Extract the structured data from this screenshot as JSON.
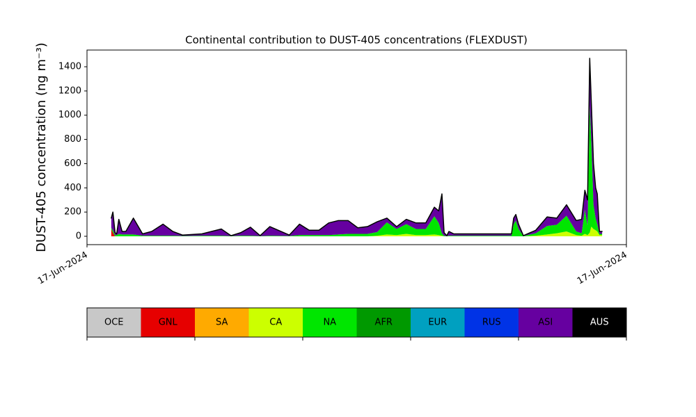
{
  "chart_data": {
    "type": "stacked_area",
    "title": "Continental contribution to DUST-405 concentrations (FLEXDUST)",
    "ylabel": "DUST-405 concentration (ng m⁻³)",
    "xlim": [
      0,
      1
    ],
    "xticks": [
      {
        "value": 0,
        "label": "17-Jun-2024"
      },
      {
        "value": 1,
        "label": "17-Jun-2024"
      }
    ],
    "ylim": [
      -69,
      1538
    ],
    "yticks": [
      0,
      200,
      400,
      600,
      800,
      1000,
      1200,
      1400
    ],
    "x": [
      0.045,
      0.048,
      0.052,
      0.055,
      0.059,
      0.065,
      0.072,
      0.086,
      0.103,
      0.12,
      0.141,
      0.159,
      0.177,
      0.213,
      0.249,
      0.267,
      0.285,
      0.303,
      0.321,
      0.339,
      0.375,
      0.394,
      0.412,
      0.43,
      0.448,
      0.466,
      0.484,
      0.502,
      0.52,
      0.538,
      0.556,
      0.574,
      0.592,
      0.61,
      0.628,
      0.644,
      0.652,
      0.658,
      0.662,
      0.667,
      0.671,
      0.68,
      0.787,
      0.791,
      0.795,
      0.8,
      0.809,
      0.832,
      0.853,
      0.871,
      0.889,
      0.907,
      0.917,
      0.923,
      0.928,
      0.932,
      0.935,
      0.939,
      0.943,
      0.946,
      0.95,
      0.955
    ],
    "series": [
      {
        "name": "OCE",
        "color": "#c8c8c8",
        "values": [
          0,
          0,
          0,
          0,
          0,
          0,
          0,
          0,
          0,
          0,
          0,
          0,
          0,
          0,
          0,
          0,
          0,
          0,
          0,
          0,
          0,
          0,
          0,
          0,
          0,
          0,
          0,
          0,
          0,
          0,
          0,
          0,
          0,
          0,
          0,
          0,
          0,
          0,
          0,
          0,
          0,
          0,
          0,
          0,
          0,
          0,
          0,
          0,
          0,
          0,
          0,
          0,
          0,
          0,
          0,
          0,
          0,
          0,
          0,
          0,
          0,
          0
        ]
      },
      {
        "name": "GNL",
        "color": "#e60000",
        "values": [
          60,
          30,
          0,
          0,
          0,
          0,
          0,
          0,
          0,
          0,
          0,
          0,
          0,
          0,
          0,
          0,
          0,
          0,
          0,
          0,
          0,
          0,
          0,
          0,
          0,
          0,
          0,
          0,
          0,
          0,
          0,
          0,
          0,
          0,
          0,
          0,
          0,
          0,
          0,
          0,
          0,
          0,
          0,
          0,
          0,
          0,
          0,
          0,
          0,
          0,
          0,
          0,
          0,
          0,
          0,
          0,
          0,
          0,
          0,
          0,
          0,
          0
        ]
      },
      {
        "name": "SA",
        "color": "#ffaa00",
        "values": [
          0,
          0,
          0,
          0,
          0,
          0,
          0,
          0,
          0,
          0,
          0,
          0,
          0,
          0,
          0,
          0,
          0,
          0,
          0,
          0,
          0,
          0,
          0,
          0,
          0,
          0,
          0,
          0,
          0,
          0,
          0,
          0,
          0,
          0,
          0,
          0,
          0,
          0,
          0,
          0,
          0,
          0,
          0,
          0,
          0,
          0,
          0,
          0,
          0,
          0,
          0,
          0,
          0,
          0,
          0,
          0,
          0,
          0,
          0,
          0,
          0,
          0
        ]
      },
      {
        "name": "CA",
        "color": "#ccff00",
        "values": [
          0,
          0,
          0,
          0,
          0,
          0,
          0,
          0,
          0,
          0,
          0,
          0,
          0,
          0,
          0,
          0,
          0,
          0,
          0,
          0,
          0,
          0,
          0,
          0,
          0,
          0,
          0,
          0,
          0,
          5,
          15,
          10,
          20,
          10,
          10,
          15,
          10,
          5,
          0,
          0,
          0,
          0,
          0,
          0,
          0,
          0,
          0,
          5,
          15,
          25,
          40,
          10,
          5,
          20,
          10,
          30,
          80,
          60,
          50,
          40,
          10,
          10
        ]
      },
      {
        "name": "NA",
        "color": "#00e600",
        "values": [
          10,
          20,
          10,
          10,
          20,
          15,
          15,
          15,
          5,
          5,
          5,
          5,
          3,
          5,
          5,
          2,
          5,
          5,
          2,
          5,
          3,
          10,
          10,
          10,
          10,
          15,
          20,
          20,
          20,
          30,
          100,
          50,
          80,
          50,
          50,
          150,
          100,
          20,
          5,
          2,
          5,
          5,
          5,
          100,
          130,
          60,
          2,
          20,
          70,
          70,
          130,
          30,
          20,
          200,
          80,
          1050,
          700,
          200,
          100,
          60,
          10,
          10
        ]
      },
      {
        "name": "AFR",
        "color": "#009900",
        "values": [
          0,
          0,
          0,
          0,
          0,
          0,
          0,
          0,
          0,
          0,
          0,
          0,
          0,
          0,
          0,
          0,
          0,
          0,
          0,
          0,
          0,
          0,
          0,
          0,
          0,
          0,
          0,
          0,
          0,
          0,
          0,
          0,
          0,
          0,
          0,
          0,
          0,
          0,
          0,
          0,
          0,
          0,
          0,
          0,
          0,
          0,
          0,
          0,
          0,
          0,
          0,
          0,
          0,
          0,
          0,
          0,
          0,
          0,
          0,
          0,
          0,
          0
        ]
      },
      {
        "name": "EUR",
        "color": "#00a0c0",
        "values": [
          0,
          0,
          0,
          0,
          0,
          0,
          0,
          0,
          0,
          0,
          0,
          0,
          0,
          0,
          0,
          0,
          0,
          0,
          0,
          0,
          0,
          0,
          0,
          0,
          0,
          0,
          0,
          0,
          0,
          0,
          0,
          0,
          0,
          0,
          0,
          0,
          0,
          0,
          0,
          0,
          0,
          0,
          0,
          0,
          0,
          0,
          0,
          0,
          0,
          0,
          0,
          0,
          0,
          0,
          0,
          0,
          0,
          0,
          0,
          0,
          0,
          0
        ]
      },
      {
        "name": "RUS",
        "color": "#0033e6",
        "values": [
          0,
          0,
          0,
          0,
          0,
          0,
          0,
          0,
          0,
          0,
          0,
          0,
          0,
          0,
          0,
          0,
          0,
          0,
          0,
          0,
          0,
          0,
          0,
          0,
          0,
          0,
          0,
          0,
          0,
          0,
          0,
          0,
          0,
          0,
          0,
          0,
          0,
          0,
          0,
          0,
          0,
          0,
          0,
          0,
          0,
          0,
          0,
          0,
          0,
          0,
          0,
          0,
          0,
          0,
          0,
          0,
          0,
          0,
          0,
          0,
          0,
          0
        ]
      },
      {
        "name": "ASI",
        "color": "#6600a0",
        "values": [
          80,
          150,
          20,
          10,
          120,
          25,
          25,
          135,
          15,
          35,
          95,
          35,
          7,
          15,
          55,
          3,
          25,
          70,
          3,
          75,
          7,
          90,
          40,
          40,
          100,
          115,
          110,
          50,
          60,
          85,
          35,
          20,
          40,
          50,
          50,
          75,
          100,
          325,
          25,
          3,
          35,
          15,
          15,
          50,
          50,
          40,
          3,
          25,
          75,
          55,
          90,
          90,
          115,
          160,
          210,
          390,
          320,
          340,
          250,
          250,
          20,
          20
        ]
      },
      {
        "name": "AUS",
        "color": "#000000",
        "values": [
          0,
          0,
          0,
          0,
          0,
          0,
          0,
          0,
          0,
          0,
          0,
          0,
          0,
          0,
          0,
          0,
          0,
          0,
          0,
          0,
          0,
          0,
          0,
          0,
          0,
          0,
          0,
          0,
          0,
          0,
          0,
          0,
          0,
          0,
          0,
          0,
          0,
          0,
          0,
          0,
          0,
          0,
          0,
          0,
          0,
          0,
          0,
          0,
          0,
          0,
          0,
          0,
          0,
          0,
          0,
          0,
          0,
          0,
          0,
          0,
          0,
          0
        ]
      }
    ]
  }
}
